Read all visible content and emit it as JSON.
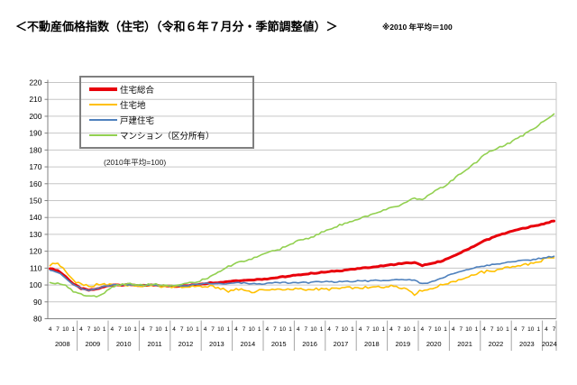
{
  "title": "＜不動産価格指数（住宅）（令和６年７月分・季節調整値）＞",
  "note": "※2010 年平均＝100",
  "chart_data": {
    "type": "line",
    "x_start": "2008-04",
    "x_end": "2024-07",
    "x_frequency": "monthly; values below are quarterly anchors at months 4,7,10,1",
    "month_tick_pattern": [
      "4",
      "7",
      "10",
      "1"
    ],
    "years": [
      "2008",
      "2009",
      "2010",
      "2011",
      "2012",
      "2013",
      "2014",
      "2015",
      "2016",
      "2017",
      "2018",
      "2019",
      "2020",
      "2021",
      "2022",
      "2023",
      "2024"
    ],
    "ylim": [
      80,
      220
    ],
    "y_ticks": [
      80,
      90,
      100,
      110,
      120,
      130,
      140,
      150,
      160,
      170,
      180,
      190,
      200,
      210,
      220
    ],
    "grid": true,
    "legend_position": "top-left",
    "annotation": "(2010年平均=100)",
    "axis_color": "#808080",
    "grid_color": "#c6c6c6",
    "separator_color": "#a6a6a6",
    "series": [
      {
        "name": "住宅総合",
        "color": "#e8000b",
        "width": 3,
        "jitter": 0.3,
        "quarterly_values": [
          110,
          108.5,
          105,
          100.5,
          98,
          96.8,
          97.5,
          99,
          100,
          100,
          100.2,
          99.9,
          99.5,
          100,
          99.7,
          99.4,
          99.2,
          99.3,
          99.8,
          100.3,
          100.9,
          101.3,
          101.6,
          102,
          102.6,
          102.8,
          103,
          103.3,
          103.8,
          104.3,
          104.8,
          105.3,
          105.9,
          106.5,
          107,
          107.4,
          107.8,
          108.3,
          108.8,
          109.3,
          109.8,
          110.3,
          110.8,
          111.3,
          111.9,
          112.5,
          113,
          113.2,
          111.6,
          112.3,
          113.7,
          115,
          117,
          119.3,
          121.5,
          123.8,
          126.2,
          128,
          129.7,
          131,
          132.4,
          133.6,
          134.5,
          135.6,
          136.7,
          137.8
        ]
      },
      {
        "name": "住宅地",
        "color": "#ffc000",
        "width": 1.6,
        "jitter": 0.8,
        "quarterly_values": [
          112,
          113,
          108,
          103,
          100.5,
          99,
          100,
          100.4,
          100.1,
          99.8,
          99.9,
          99.6,
          99.2,
          99.8,
          99.4,
          99,
          98.7,
          98.8,
          98.9,
          99.2,
          98.8,
          99.3,
          97.8,
          96,
          97.8,
          97.4,
          95,
          97.3,
          97,
          97.5,
          97.2,
          97,
          97.7,
          97.2,
          97.5,
          97.8,
          97.5,
          98,
          98.3,
          98,
          98.5,
          98.2,
          98.7,
          99,
          99.4,
          99,
          97.6,
          94.5,
          96.8,
          97.5,
          99,
          100.5,
          102,
          103.5,
          105,
          106.5,
          107.8,
          108.4,
          109.3,
          110.3,
          111,
          112,
          112.6,
          113.6,
          115.8,
          116
        ]
      },
      {
        "name": "戸建住宅",
        "color": "#4f81bd",
        "width": 1.6,
        "jitter": 0.4,
        "quarterly_values": [
          109,
          107.5,
          104,
          100.3,
          97.8,
          96.8,
          97.6,
          99.2,
          100,
          100.1,
          100.3,
          100,
          99.7,
          100.2,
          99.9,
          99.6,
          99.4,
          99.5,
          99.9,
          100.3,
          100.7,
          100.9,
          100.7,
          100.6,
          101.3,
          101,
          100.8,
          100.7,
          101,
          101.3,
          101.5,
          101.2,
          101.6,
          101.3,
          101.8,
          101.6,
          102,
          101.8,
          102.3,
          102.1,
          102.5,
          102.3,
          102.8,
          102.6,
          103,
          103.2,
          103.1,
          103,
          100.8,
          101.6,
          103.3,
          105,
          106.6,
          108,
          109.4,
          110.4,
          111.3,
          111.9,
          112.5,
          113.4,
          114,
          114.5,
          114.9,
          115.6,
          116.2,
          117.2
        ]
      },
      {
        "name": "マンション（区分所有）",
        "color": "#92d050",
        "width": 1.6,
        "jitter": 0.6,
        "quarterly_values": [
          101.5,
          101,
          99.5,
          96.5,
          94.5,
          93.8,
          93.5,
          95,
          99,
          100.3,
          100.8,
          100.4,
          99.8,
          100.6,
          100.2,
          100,
          99.8,
          100.3,
          101.3,
          101.8,
          103.5,
          105.5,
          108,
          111,
          113,
          114,
          115.5,
          117.5,
          119,
          120.5,
          122,
          124,
          126,
          127.5,
          129,
          131,
          133,
          134.8,
          136.5,
          138,
          139.5,
          141,
          142.5,
          144,
          145.5,
          147,
          149,
          151.5,
          150.5,
          153.5,
          156.5,
          159,
          162.5,
          166,
          169.5,
          172.5,
          177.5,
          179.5,
          181.5,
          183.5,
          186.5,
          189,
          191.5,
          194.5,
          198,
          201.5
        ]
      }
    ]
  }
}
